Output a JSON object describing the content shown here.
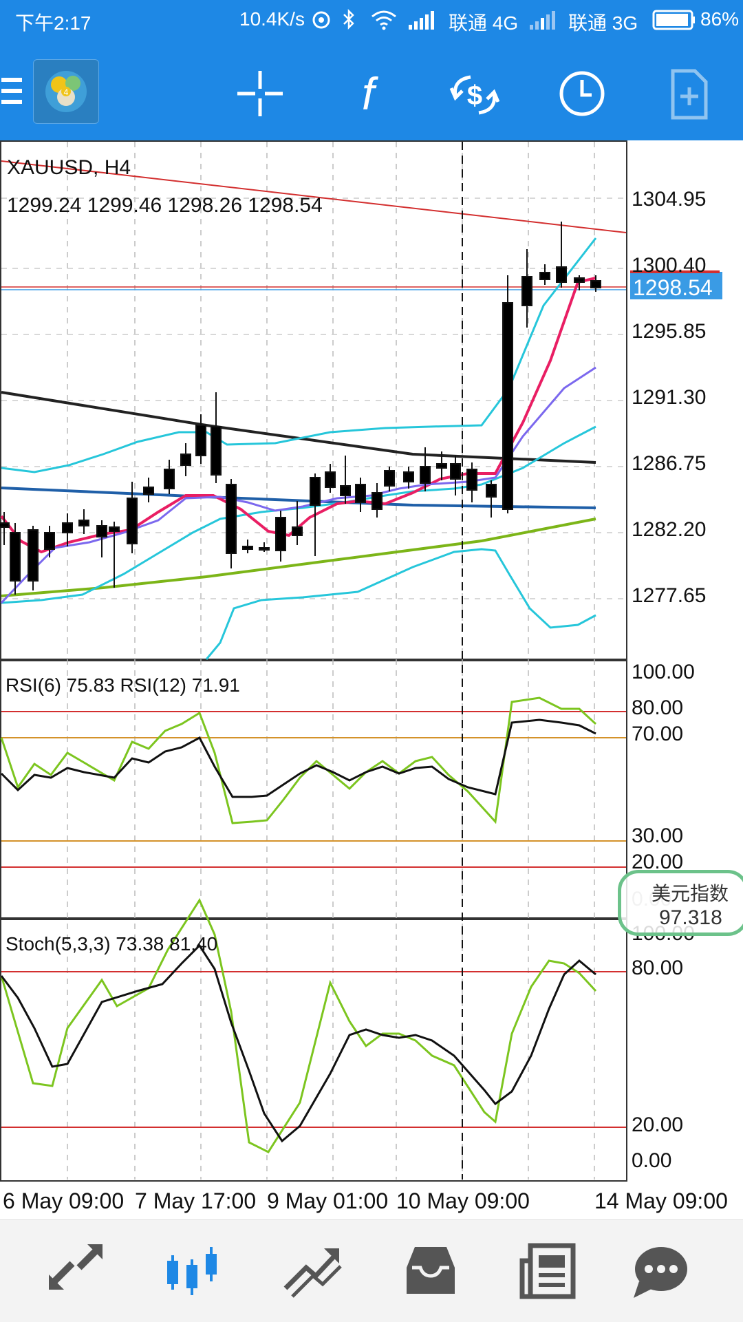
{
  "status_bar": {
    "time": "下午2:17",
    "speed": "10.4K/s",
    "carrier1": "联通 4G",
    "carrier2": "联通 3G",
    "battery": "86%"
  },
  "toolbar": {
    "items": [
      "menu-icon",
      "metatrader-logo",
      "crosshair-icon",
      "function-icon",
      "trade-icon",
      "clock-icon",
      "new-order-icon"
    ]
  },
  "chart": {
    "symbol_label": "XAUUSD, H4",
    "ohlc_label": "1299.24 1299.46 1298.26 1298.54",
    "current_price": "1298.54",
    "price_ticks": [
      "1304.95",
      "1300.40",
      "1295.85",
      "1291.30",
      "1286.75",
      "1282.20",
      "1277.65"
    ],
    "rsi_label": "RSI(6) 75.83 RSI(12) 71.91",
    "rsi_ticks": [
      "100.00",
      "80.00",
      "70.00",
      "30.00",
      "20.00",
      "0.00"
    ],
    "stoch_label": "Stoch(5,3,3) 73.38 81.40",
    "stoch_ticks": [
      "100.00",
      "80.00",
      "20.00",
      "0.00"
    ],
    "time_labels": [
      "6 May 09:00",
      "7 May 17:00",
      "9 May 01:00",
      "10 May 09:00",
      "14 May 09:00"
    ],
    "colors": {
      "bullish_body": "#ffffff",
      "bearish_body": "#000000",
      "bollinger": "#26C6DA",
      "fast_ma": "#E91E63",
      "slow_ma": "#7B68EE",
      "long_ma_green": "#7CB518",
      "trend_black": "#222222",
      "trend_blue": "#1F5FA8",
      "resistance_red": "#D32F2F",
      "level_orange": "#D4922A",
      "rsi6": "#7CC51F",
      "rsi12": "#111111"
    }
  },
  "usd_index": {
    "name": "美元指数",
    "value": "97.318"
  },
  "bottom_nav": {
    "items": [
      "quotes-icon",
      "chart-icon",
      "trade-icon",
      "history-icon",
      "news-icon",
      "chat-icon"
    ],
    "active_index": 1,
    "active_color": "#1E88E5"
  }
}
